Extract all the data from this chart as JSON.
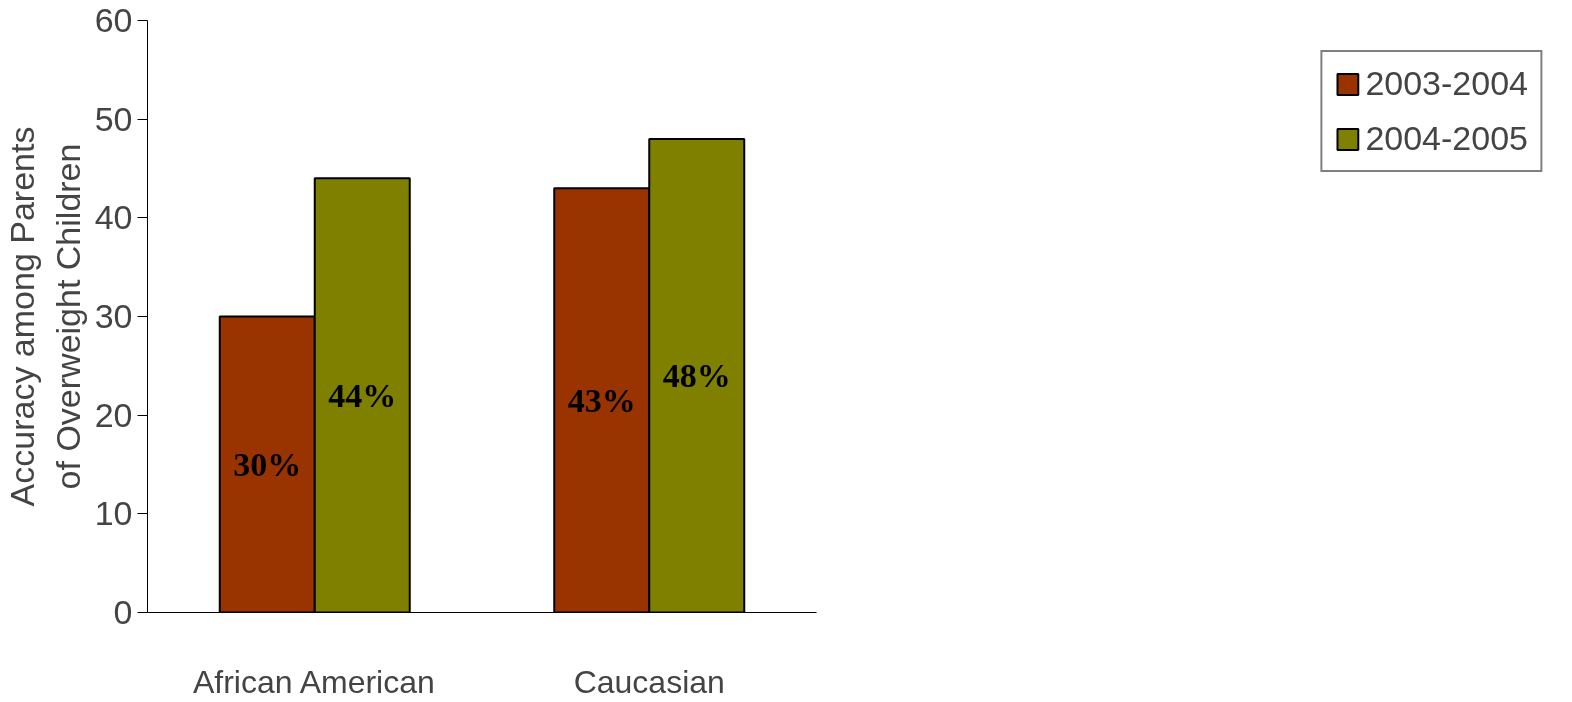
{
  "chart_data": {
    "type": "bar",
    "categories": [
      "African American",
      "Caucasian"
    ],
    "ylabel": "Accuracy among Parents of Overweight Children",
    "ylim": [
      0,
      60
    ],
    "yticks": [
      0,
      10,
      20,
      30,
      40,
      50,
      60
    ],
    "grid": false,
    "legend": "right",
    "series": [
      {
        "name": "2003-2004",
        "color": "#993300",
        "values": [
          30,
          43
        ],
        "value_labels": [
          "30%",
          "43%"
        ]
      },
      {
        "name": "2004-2005",
        "color": "#808000",
        "values": [
          44,
          48
        ],
        "value_labels": [
          "44%",
          "48%"
        ]
      }
    ]
  }
}
